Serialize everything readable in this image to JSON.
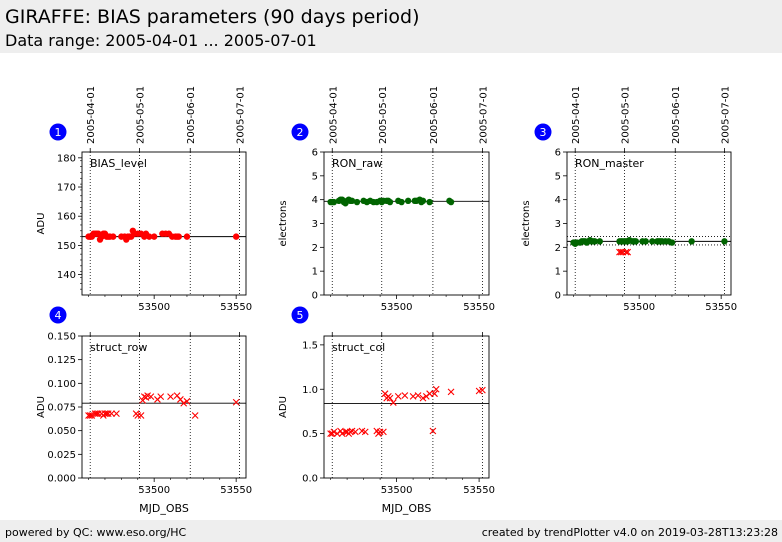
{
  "header": {
    "title": "GIRAFFE: BIAS parameters (90 days period)",
    "subtitle": "Data range: 2005-04-01 ... 2005-07-01"
  },
  "footer": {
    "left": "powered by QC: www.eso.org/HC",
    "right": "created by trendPlotter v4.0 on 2019-03-28T13:23:28"
  },
  "colors": {
    "red": "#ff0000",
    "green": "#006400",
    "badge": "#0000ff"
  },
  "chart_data": [
    {
      "type": "scatter",
      "badge": "1",
      "label": "BIAS_level",
      "ylabel": "ADU",
      "xlabel": "",
      "xlim": [
        53456,
        53556
      ],
      "ylim": [
        133,
        182
      ],
      "yticks": [
        140,
        150,
        160,
        170,
        180
      ],
      "xticks": [
        53500,
        53550
      ],
      "date_ticks": [
        {
          "mjd": 53461,
          "label": "2005-04-01"
        },
        {
          "mjd": 53491,
          "label": "2005-05-01"
        },
        {
          "mjd": 53522,
          "label": "2005-06-01"
        },
        {
          "mjd": 53552,
          "label": "2005-07-01"
        }
      ],
      "reference_lines": [
        153
      ],
      "marker": "circle",
      "color": "#ff0000",
      "x": [
        53460,
        53461,
        53462,
        53463,
        53464,
        53465,
        53466,
        53467,
        53468,
        53469,
        53470,
        53471,
        53472,
        53473,
        53475,
        53480,
        53482,
        53483,
        53484,
        53485,
        53486,
        53487,
        53488,
        53490,
        53492,
        53494,
        53495,
        53497,
        53500,
        53505,
        53507,
        53509,
        53511,
        53513,
        53514,
        53515,
        53520,
        53550
      ],
      "y": [
        153,
        153,
        153,
        154,
        154,
        154,
        154,
        152,
        153,
        154,
        154,
        153,
        153,
        153,
        153,
        153,
        153,
        152,
        153,
        153,
        153,
        155,
        154,
        154,
        154,
        153,
        154,
        153,
        153,
        154,
        154,
        154,
        153,
        153,
        153,
        153,
        153,
        153
      ]
    },
    {
      "type": "scatter",
      "badge": "2",
      "label": "RON_raw",
      "ylabel": "electrons",
      "xlabel": "",
      "xlim": [
        53456,
        53556
      ],
      "ylim": [
        0,
        6
      ],
      "yticks": [
        0,
        1,
        2,
        3,
        4,
        5,
        6
      ],
      "xticks": [
        53500,
        53550
      ],
      "date_ticks": [
        {
          "mjd": 53461,
          "label": "2005-04-01"
        },
        {
          "mjd": 53491,
          "label": "2005-05-01"
        },
        {
          "mjd": 53522,
          "label": "2005-06-01"
        },
        {
          "mjd": 53552,
          "label": "2005-07-01"
        }
      ],
      "reference_lines": [
        3.93
      ],
      "marker": "circle",
      "color": "#006400",
      "x": [
        53460,
        53461,
        53462,
        53465,
        53466,
        53467,
        53468,
        53469,
        53470,
        53471,
        53472,
        53473,
        53476,
        53480,
        53482,
        53484,
        53486,
        53488,
        53490,
        53491,
        53492,
        53494,
        53495,
        53496,
        53501,
        53503,
        53507,
        53511,
        53512,
        53514,
        53515,
        53516,
        53520,
        53532,
        53533
      ],
      "y": [
        3.9,
        3.9,
        3.9,
        3.95,
        4.0,
        4.0,
        3.9,
        3.85,
        3.95,
        4.0,
        3.95,
        3.95,
        3.9,
        3.95,
        3.9,
        3.95,
        3.9,
        3.9,
        3.95,
        3.9,
        3.95,
        3.95,
        3.95,
        3.9,
        3.95,
        3.9,
        3.95,
        3.95,
        3.95,
        4.0,
        3.9,
        3.95,
        3.9,
        3.95,
        3.9
      ]
    },
    {
      "type": "scatter",
      "badge": "3",
      "label": "RON_master",
      "ylabel": "electrons",
      "xlabel": "",
      "xlim": [
        53456,
        53556
      ],
      "ylim": [
        0,
        6
      ],
      "yticks": [
        0,
        1,
        2,
        3,
        4,
        5,
        6
      ],
      "xticks": [
        53500,
        53550
      ],
      "date_ticks": [
        {
          "mjd": 53461,
          "label": "2005-04-01"
        },
        {
          "mjd": 53491,
          "label": "2005-05-01"
        },
        {
          "mjd": 53522,
          "label": "2005-06-01"
        },
        {
          "mjd": 53552,
          "label": "2005-07-01"
        }
      ],
      "reference_lines": [
        2.25,
        2.1,
        2.45
      ],
      "series": [
        {
          "marker": "circle",
          "color": "#006400",
          "x": [
            53460,
            53461,
            53462,
            53464,
            53465,
            53466,
            53467,
            53468,
            53469,
            53470,
            53471,
            53472,
            53473,
            53476,
            53488,
            53489,
            53490,
            53491,
            53492,
            53493,
            53494,
            53496,
            53497,
            53498,
            53502,
            53504,
            53508,
            53511,
            53512,
            53513,
            53514,
            53516,
            53518,
            53520,
            53532,
            53552
          ],
          "y": [
            2.2,
            2.15,
            2.2,
            2.2,
            2.25,
            2.25,
            2.25,
            2.2,
            2.25,
            2.3,
            2.25,
            2.25,
            2.25,
            2.25,
            2.25,
            2.25,
            2.25,
            2.25,
            2.25,
            2.25,
            2.3,
            2.25,
            2.25,
            2.25,
            2.25,
            2.25,
            2.25,
            2.25,
            2.25,
            2.25,
            2.25,
            2.25,
            2.25,
            2.2,
            2.25,
            2.25
          ]
        },
        {
          "marker": "cross",
          "color": "#ff0000",
          "x": [
            53488,
            53489,
            53490,
            53492,
            53493
          ],
          "y": [
            1.8,
            1.8,
            1.8,
            1.8,
            1.8
          ]
        }
      ]
    },
    {
      "type": "scatter",
      "badge": "4",
      "label": "struct_row",
      "ylabel": "ADU",
      "xlabel": "MJD_OBS",
      "xlim": [
        53456,
        53556
      ],
      "ylim": [
        0,
        0.15
      ],
      "yticks": [
        0,
        0.025,
        0.05,
        0.075,
        0.1,
        0.125,
        0.15
      ],
      "ytick_labels": [
        "0.000",
        "0.025",
        "0.050",
        "0.075",
        "0.100",
        "0.125",
        "0.150"
      ],
      "xticks": [
        53500,
        53550
      ],
      "date_ticks": [
        {
          "mjd": 53461,
          "label": ""
        },
        {
          "mjd": 53491,
          "label": ""
        },
        {
          "mjd": 53522,
          "label": ""
        },
        {
          "mjd": 53552,
          "label": ""
        }
      ],
      "reference_lines": [
        0.079
      ],
      "marker": "cross",
      "color": "#ff0000",
      "x": [
        53460,
        53461,
        53462,
        53464,
        53465,
        53466,
        53468,
        53469,
        53470,
        53471,
        53472,
        53474,
        53477,
        53489,
        53490,
        53492,
        53493,
        53494,
        53495,
        53496,
        53498,
        53502,
        53504,
        53510,
        53514,
        53516,
        53518,
        53520,
        53525,
        53550
      ],
      "y": [
        0.066,
        0.066,
        0.066,
        0.068,
        0.068,
        0.068,
        0.068,
        0.066,
        0.068,
        0.068,
        0.068,
        0.068,
        0.068,
        0.068,
        0.066,
        0.066,
        0.082,
        0.086,
        0.085,
        0.087,
        0.086,
        0.083,
        0.086,
        0.086,
        0.087,
        0.083,
        0.079,
        0.081,
        0.066,
        0.08
      ]
    },
    {
      "type": "scatter",
      "badge": "5",
      "label": "struct_col",
      "ylabel": "ADU",
      "xlabel": "MJD_OBS",
      "xlim": [
        53456,
        53556
      ],
      "ylim": [
        0,
        1.6
      ],
      "yticks": [
        0,
        0.5,
        1.0,
        1.5
      ],
      "ytick_labels": [
        "0.0",
        "0.5",
        "1.0",
        "1.5"
      ],
      "xticks": [
        53500,
        53550
      ],
      "date_ticks": [
        {
          "mjd": 53461,
          "label": ""
        },
        {
          "mjd": 53491,
          "label": ""
        },
        {
          "mjd": 53522,
          "label": ""
        },
        {
          "mjd": 53552,
          "label": ""
        }
      ],
      "reference_lines": [
        0.84
      ],
      "marker": "cross",
      "color": "#ff0000",
      "x": [
        53460,
        53461,
        53462,
        53464,
        53466,
        53467,
        53469,
        53470,
        53471,
        53472,
        53473,
        53475,
        53479,
        53481,
        53488,
        53489,
        53490,
        53492,
        53493,
        53494,
        53495,
        53496,
        53498,
        53501,
        53505,
        53510,
        53513,
        53516,
        53518,
        53520,
        53522,
        53523,
        53524,
        53533,
        53550,
        53552
      ],
      "y": [
        0.5,
        0.5,
        0.52,
        0.5,
        0.53,
        0.5,
        0.52,
        0.52,
        0.5,
        0.52,
        0.53,
        0.52,
        0.53,
        0.52,
        0.53,
        0.5,
        0.52,
        0.52,
        0.95,
        0.9,
        0.92,
        0.9,
        0.85,
        0.92,
        0.93,
        0.92,
        0.93,
        0.9,
        0.92,
        0.95,
        0.53,
        0.95,
        1.0,
        0.97,
        0.98,
        0.99
      ]
    }
  ]
}
